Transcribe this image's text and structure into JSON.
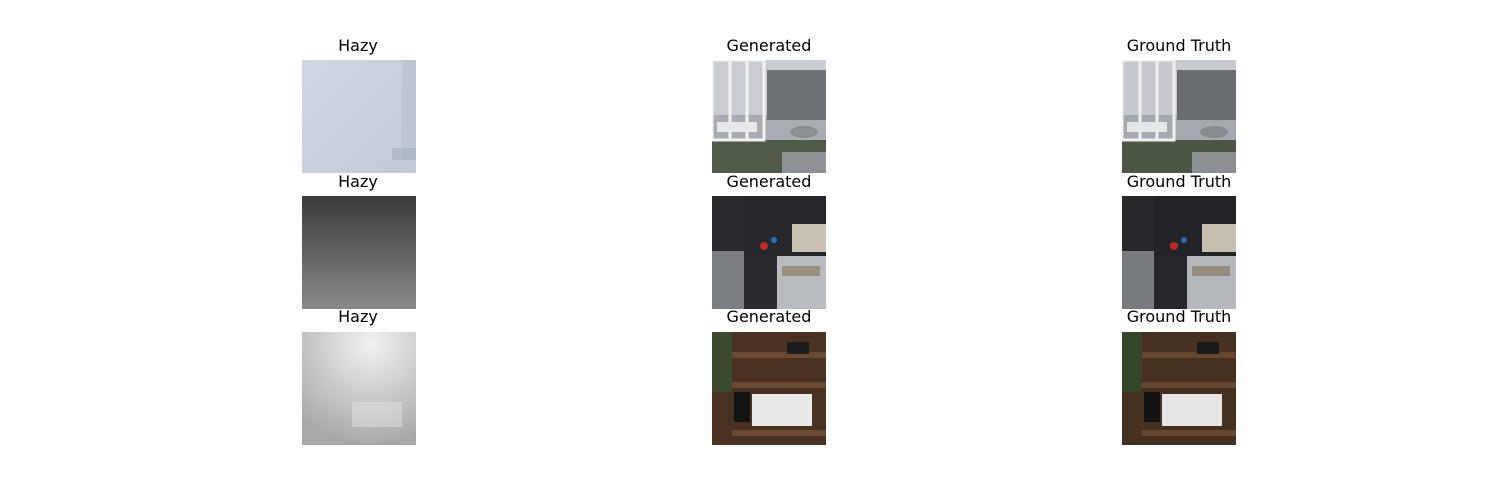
{
  "rows": [
    {
      "hazy_title": "Hazy",
      "generated_title": "Generated",
      "ground_truth_title": "Ground Truth",
      "scene": "outdoor garden with white gazebo"
    },
    {
      "hazy_title": "Hazy",
      "generated_title": "Generated",
      "ground_truth_title": "Ground Truth",
      "scene": "dark kitchen counter"
    },
    {
      "hazy_title": "Hazy",
      "generated_title": "Generated",
      "ground_truth_title": "Ground Truth",
      "scene": "wooden shelving with desk"
    }
  ]
}
